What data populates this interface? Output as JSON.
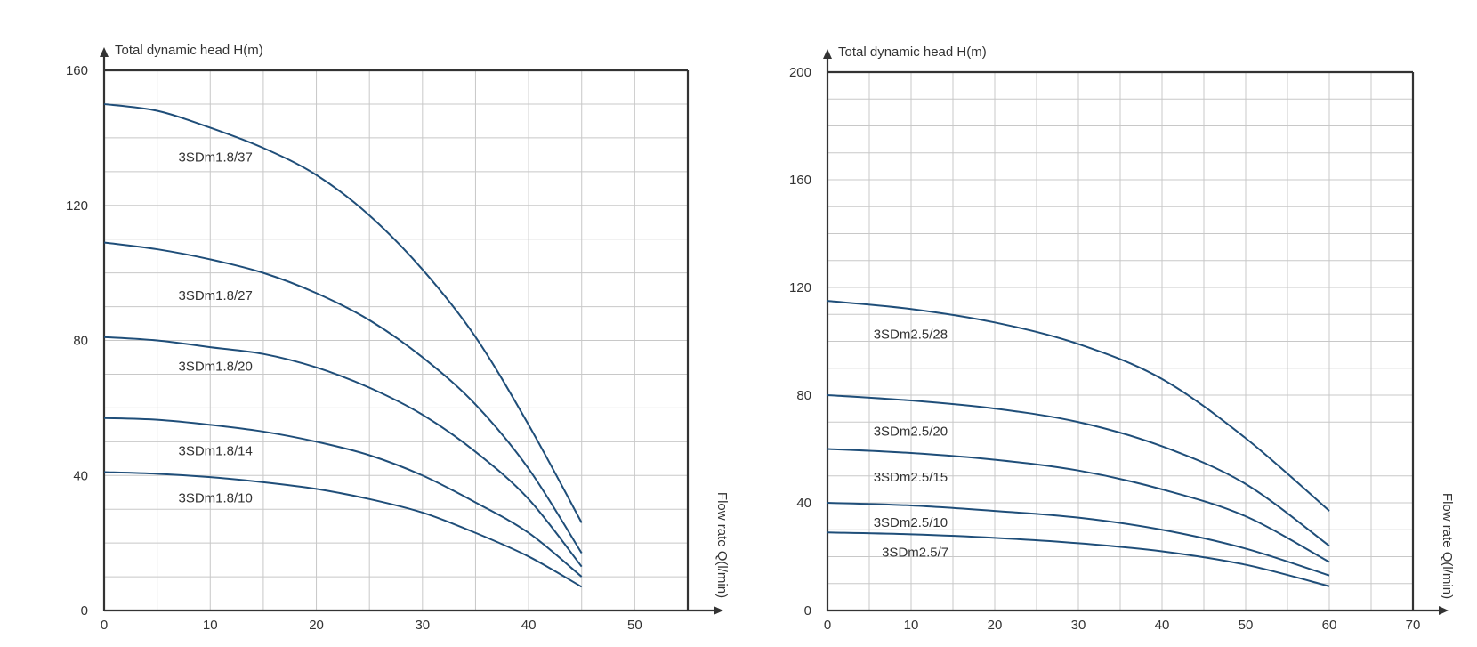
{
  "chart_data": [
    {
      "type": "line",
      "ylabel": "Total dynamic head H(m)",
      "xlabel": "Flow rate Q(l/min)",
      "xlim": [
        0,
        55
      ],
      "ylim": [
        0,
        160
      ],
      "xticks": [
        "0",
        "10",
        "20",
        "30",
        "40",
        "50"
      ],
      "yticks": [
        "0",
        "40",
        "80",
        "120",
        "160"
      ],
      "grid": true,
      "series": [
        {
          "name": "3SDm1.8/37",
          "color": "#1f4e79",
          "label_at": [
            7,
            133
          ],
          "x": [
            0,
            5,
            10,
            15,
            20,
            25,
            30,
            35,
            40,
            45
          ],
          "y": [
            150,
            148,
            143,
            137,
            129,
            117,
            101,
            81,
            55,
            26
          ]
        },
        {
          "name": "3SDm1.8/27",
          "color": "#1f4e79",
          "label_at": [
            7,
            92
          ],
          "x": [
            0,
            5,
            10,
            15,
            20,
            25,
            30,
            35,
            40,
            45
          ],
          "y": [
            109,
            107,
            104,
            100,
            94,
            86,
            75,
            61,
            42,
            17
          ]
        },
        {
          "name": "3SDm1.8/20",
          "color": "#1f4e79",
          "label_at": [
            7,
            71
          ],
          "x": [
            0,
            5,
            10,
            15,
            20,
            25,
            30,
            35,
            40,
            45
          ],
          "y": [
            81,
            80,
            78,
            76,
            72,
            66,
            58,
            47,
            33,
            13
          ]
        },
        {
          "name": "3SDm1.8/14",
          "color": "#1f4e79",
          "label_at": [
            7,
            46
          ],
          "x": [
            0,
            5,
            10,
            15,
            20,
            25,
            30,
            35,
            40,
            45
          ],
          "y": [
            57,
            56.5,
            55,
            53,
            50,
            46,
            40,
            32,
            23,
            10
          ]
        },
        {
          "name": "3SDm1.8/10",
          "color": "#1f4e79",
          "label_at": [
            7,
            32
          ],
          "x": [
            0,
            5,
            10,
            15,
            20,
            25,
            30,
            35,
            40,
            45
          ],
          "y": [
            41,
            40.5,
            39.5,
            38,
            36,
            33,
            29,
            23,
            16,
            7
          ]
        }
      ]
    },
    {
      "type": "line",
      "ylabel": "Total dynamic head H(m)",
      "xlabel": "Flow rate Q(l/min)",
      "xlim": [
        0,
        70
      ],
      "ylim": [
        0,
        200
      ],
      "xticks": [
        "0",
        "10",
        "20",
        "30",
        "40",
        "50",
        "60",
        "70"
      ],
      "yticks": [
        "0",
        "40",
        "80",
        "120",
        "160",
        "200"
      ],
      "grid": true,
      "series": [
        {
          "name": "3SDm2.5/28",
          "color": "#1f4e79",
          "label_at": [
            5.5,
            101
          ],
          "x": [
            0,
            10,
            20,
            30,
            40,
            50,
            60
          ],
          "y": [
            115,
            112,
            107,
            99,
            86,
            64,
            37
          ]
        },
        {
          "name": "3SDm2.5/20",
          "color": "#1f4e79",
          "label_at": [
            5.5,
            65
          ],
          "x": [
            0,
            10,
            20,
            30,
            40,
            50,
            60
          ],
          "y": [
            80,
            78,
            75,
            70,
            61,
            47,
            24
          ]
        },
        {
          "name": "3SDm2.5/15",
          "color": "#1f4e79",
          "label_at": [
            5.5,
            48
          ],
          "x": [
            0,
            10,
            20,
            30,
            40,
            50,
            60
          ],
          "y": [
            60,
            58.5,
            56,
            52,
            45,
            35,
            18
          ]
        },
        {
          "name": "3SDm2.5/10",
          "color": "#1f4e79",
          "label_at": [
            5.5,
            31
          ],
          "x": [
            0,
            10,
            20,
            30,
            40,
            50,
            60
          ],
          "y": [
            40,
            39,
            37,
            34.5,
            30,
            23,
            13
          ]
        },
        {
          "name": "3SDm2.5/7",
          "color": "#1f4e79",
          "label_at": [
            6.5,
            20
          ],
          "x": [
            0,
            10,
            20,
            30,
            40,
            50,
            60
          ],
          "y": [
            29,
            28.3,
            27,
            25,
            22,
            17,
            9
          ]
        }
      ]
    }
  ]
}
